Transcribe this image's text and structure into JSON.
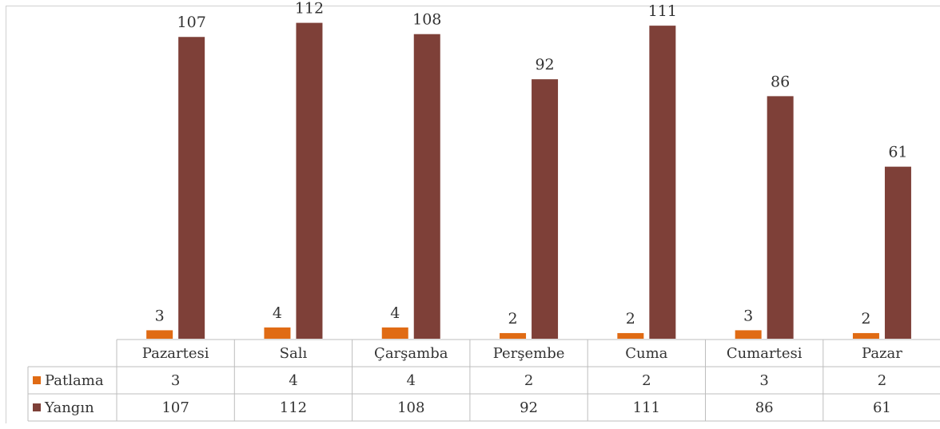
{
  "chart_data": {
    "type": "bar",
    "categories": [
      "Pazartesi",
      "Salı",
      "Çarşamba",
      "Perşembe",
      "Cuma",
      "Cumartesi",
      "Pazar"
    ],
    "series": [
      {
        "name": "Patlama",
        "values": [
          3,
          4,
          4,
          2,
          2,
          3,
          2
        ],
        "color": "#E06B14"
      },
      {
        "name": "Yangın",
        "values": [
          107,
          112,
          108,
          92,
          111,
          86,
          61
        ],
        "color": "#7E4038"
      }
    ],
    "title": "",
    "xlabel": "",
    "ylabel": "",
    "ylim": [
      0,
      115
    ],
    "grid": false,
    "data_labels": true,
    "legend": "data-table"
  }
}
